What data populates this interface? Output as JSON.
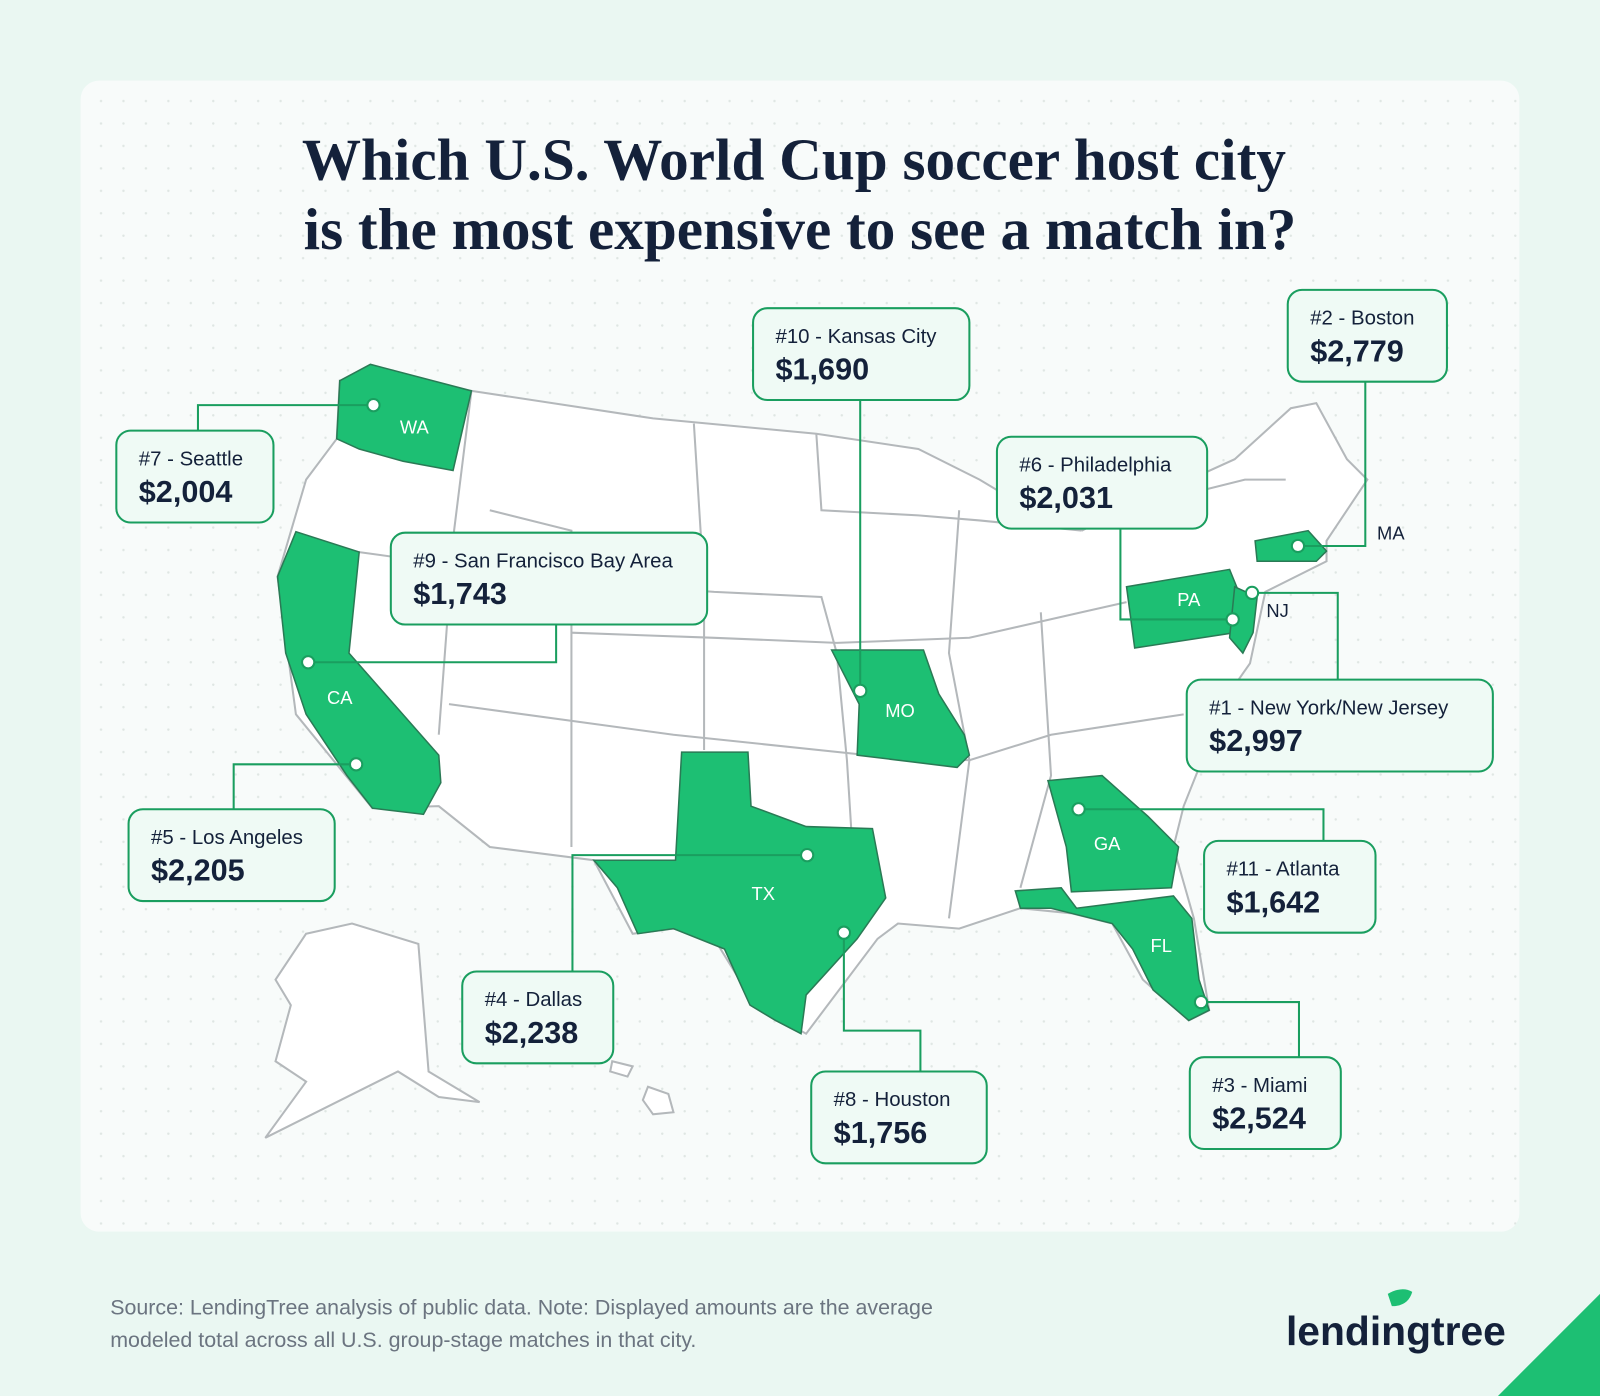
{
  "header": {
    "title_lines": [
      "Which U.S. World Cup soccer host city",
      "is the most expensive to see a match in?"
    ]
  },
  "callouts": [
    {
      "label": "#1 - New York/New Jersey",
      "amount": "$2,997"
    },
    {
      "label": "#2 - Boston",
      "amount": "$2,779"
    },
    {
      "label": "#3 - Miami",
      "amount": "$2,524"
    },
    {
      "label": "#4 - Dallas",
      "amount": "$2,238"
    },
    {
      "label": "#5 - Los Angeles",
      "amount": "$2,205"
    },
    {
      "label": "#6 - Philadelphia",
      "amount": "$2,031"
    },
    {
      "label": "#7 - Seattle",
      "amount": "$2,004"
    },
    {
      "label": "#8 - Houston",
      "amount": "$1,756"
    },
    {
      "label": "#9 - San Francisco Bay Area",
      "amount": "$1,743"
    },
    {
      "label": "#10 - Kansas City",
      "amount": "$1,690"
    },
    {
      "label": "#11 - Atlanta",
      "amount": "$1,642"
    }
  ],
  "states": [
    "WA",
    "CA",
    "MO",
    "TX",
    "GA",
    "FL",
    "PA",
    "NJ",
    "MA"
  ],
  "footer": {
    "source_lines": [
      "Source: LendingTree analysis of public data. Note: Displayed amounts are the average",
      "modeled total across all U.S. group-stage matches in that city."
    ],
    "logo": "lendingtree"
  }
}
